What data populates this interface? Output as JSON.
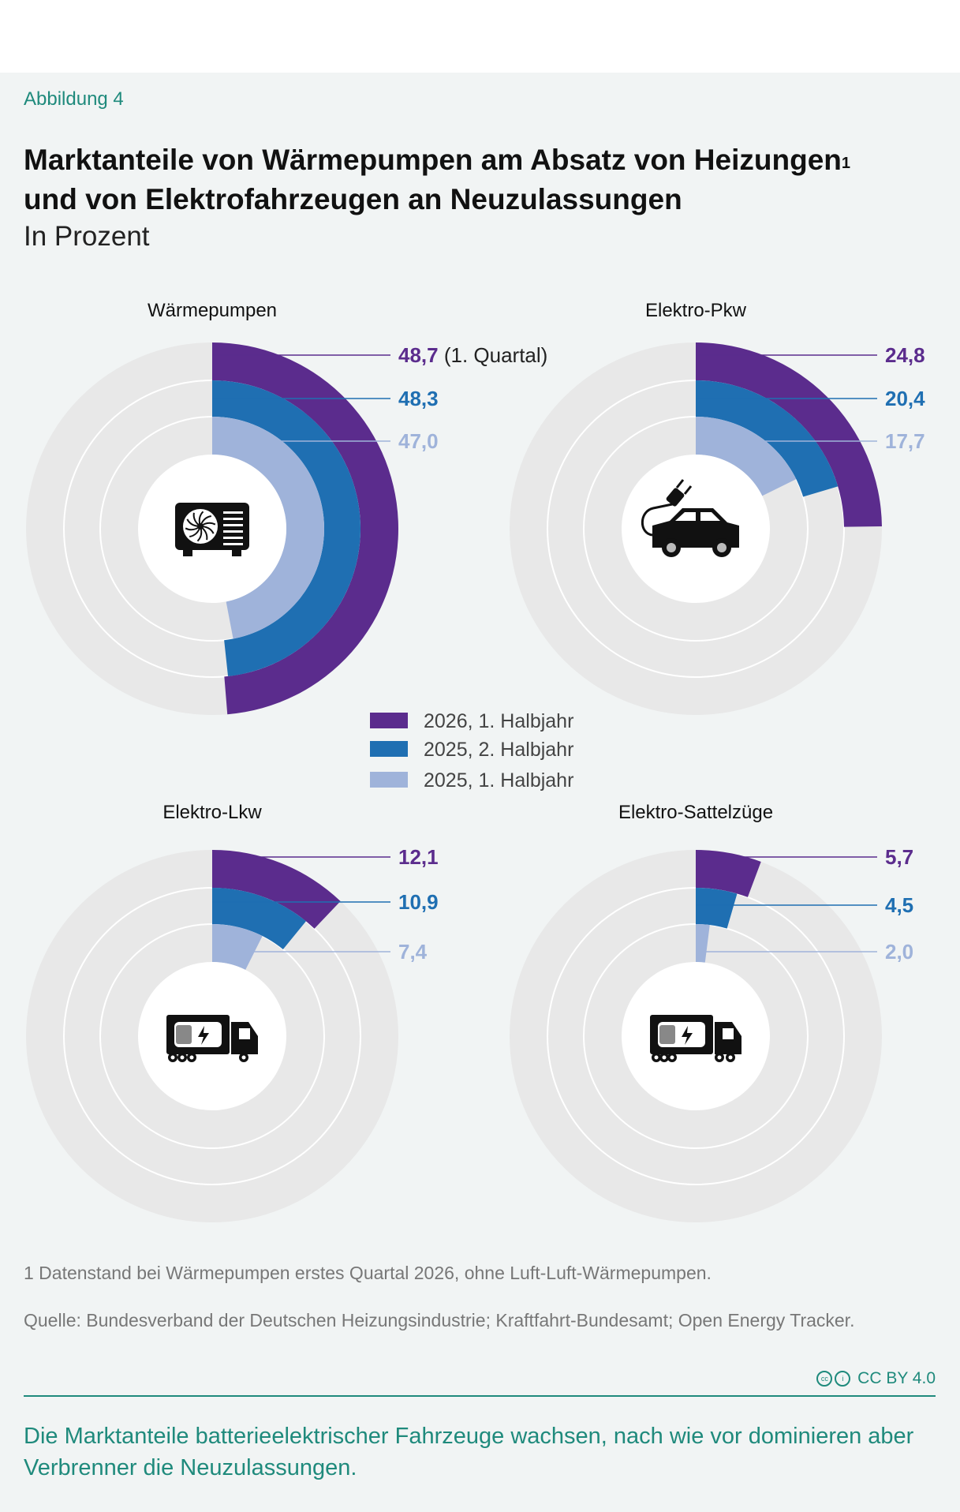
{
  "figure_label": "Abbildung 4",
  "title_line1": "Marktanteile von Wärmepumpen am Absatz von Heizungen",
  "title_sup": "1",
  "title_line2": "und von Elektrofahrzeugen an Neuzulassungen",
  "subtitle": "In Prozent",
  "colors": {
    "s2026h1": "#5b2c8d",
    "s2025h2": "#1f6fb2",
    "s2025h1": "#9fb3da",
    "track": "#e8e8e8",
    "text_dark": "#111111",
    "accent": "#1f8a7c"
  },
  "chart_data": [
    {
      "type": "radial-bar",
      "title": "Wärmepumpen",
      "icon": "heat-pump-icon",
      "series": [
        {
          "name": "2026, 1. Halbjahr",
          "value": 48.7,
          "label": "48,7",
          "note": "(1. Quartal)"
        },
        {
          "name": "2025, 2. Halbjahr",
          "value": 48.3,
          "label": "48,3"
        },
        {
          "name": "2025, 1. Halbjahr",
          "value": 47.0,
          "label": "47,0"
        }
      ]
    },
    {
      "type": "radial-bar",
      "title": "Elektro-Pkw",
      "icon": "electric-car-icon",
      "series": [
        {
          "name": "2026, 1. Halbjahr",
          "value": 24.8,
          "label": "24,8"
        },
        {
          "name": "2025, 2. Halbjahr",
          "value": 20.4,
          "label": "20,4"
        },
        {
          "name": "2025, 1. Halbjahr",
          "value": 17.7,
          "label": "17,7"
        }
      ]
    },
    {
      "type": "radial-bar",
      "title": "Elektro-Lkw",
      "icon": "electric-truck-icon",
      "series": [
        {
          "name": "2026, 1. Halbjahr",
          "value": 12.1,
          "label": "12,1"
        },
        {
          "name": "2025, 2. Halbjahr",
          "value": 10.9,
          "label": "10,9"
        },
        {
          "name": "2025, 1. Halbjahr",
          "value": 7.4,
          "label": "7,4"
        }
      ]
    },
    {
      "type": "radial-bar",
      "title": "Elektro-Sattelzüge",
      "icon": "electric-semi-truck-icon",
      "series": [
        {
          "name": "2026, 1. Halbjahr",
          "value": 5.7,
          "label": "5,7"
        },
        {
          "name": "2025, 2. Halbjahr",
          "value": 4.5,
          "label": "4,5"
        },
        {
          "name": "2025, 1. Halbjahr",
          "value": 2.0,
          "label": "2,0"
        }
      ]
    }
  ],
  "legend": [
    "2026, 1. Halbjahr",
    "2025, 2. Halbjahr",
    "2025, 1. Halbjahr"
  ],
  "footnote": "1   Datenstand bei Wärmepumpen erstes Quartal 2026, ohne Luft-Luft-Wärmepumpen.",
  "source": "Quelle: Bundesverband der Deutschen Heizungsindustrie; Kraftfahrt-Bundesamt; Open Energy Tracker.",
  "license": "CC BY 4.0",
  "summary": "Die Marktanteile batterieelektrischer Fahrzeuge wachsen, nach wie vor dominieren aber Verbrenner die Neuzulassungen."
}
